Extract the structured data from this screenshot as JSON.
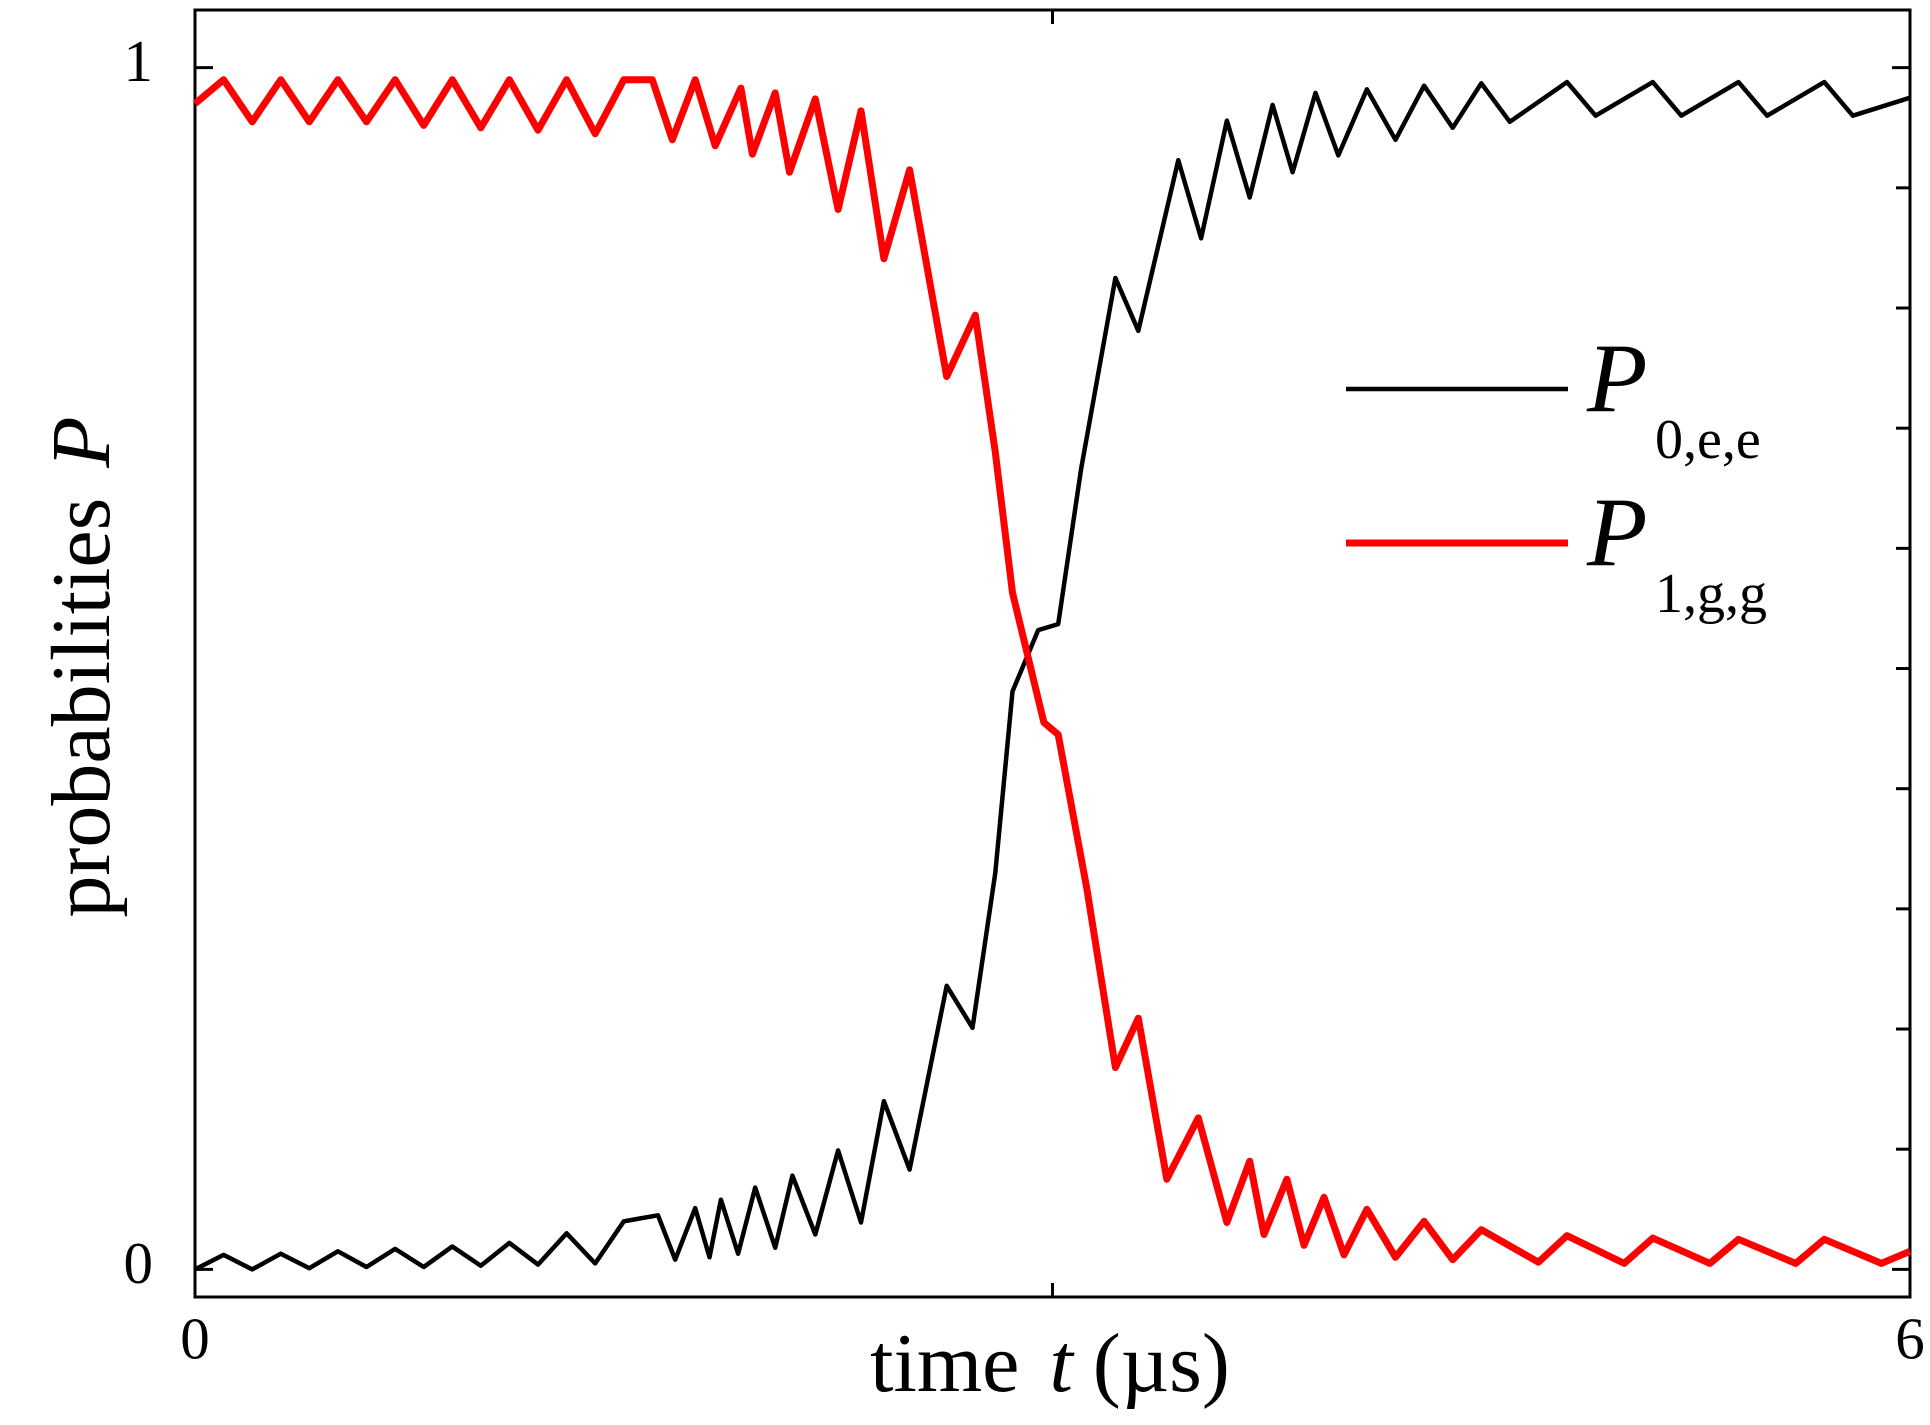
{
  "chart_data": {
    "type": "line",
    "xlabel": [
      "time",
      "t",
      "(µs)"
    ],
    "ylabel": [
      "probabilities",
      "P"
    ],
    "xlim": [
      0,
      6
    ],
    "xticks": [
      0,
      6
    ],
    "xminor_ticks": [
      3
    ],
    "ylim": [
      -0.023,
      1.048
    ],
    "yticks": [
      0,
      1
    ],
    "yminor_ticks": [
      0.1,
      0.2,
      0.3,
      0.4,
      0.5,
      0.6,
      0.7,
      0.8,
      0.9
    ],
    "legend": "right",
    "series": [
      {
        "name": "P",
        "subscript": "0,e,e",
        "color": "#000000",
        "x": [
          0,
          0.1,
          0.2,
          0.3,
          0.4,
          0.5,
          0.6,
          0.7,
          0.8,
          0.9,
          1.0,
          1.1,
          1.2,
          1.3,
          1.4,
          1.5,
          1.62,
          1.68,
          1.75,
          1.8,
          1.84,
          1.9,
          1.96,
          2.03,
          2.09,
          2.17,
          2.25,
          2.33,
          2.41,
          2.5,
          2.63,
          2.72,
          2.8,
          2.86,
          2.95,
          3.02,
          3.1,
          3.22,
          3.3,
          3.44,
          3.52,
          3.61,
          3.69,
          3.77,
          3.84,
          3.92,
          4.0,
          4.1,
          4.2,
          4.3,
          4.4,
          4.5,
          4.6,
          4.8,
          4.9,
          5.1,
          5.2,
          5.4,
          5.5,
          5.7,
          5.8,
          6.0
        ],
        "values": [
          0.0,
          0.012,
          0.0,
          0.013,
          0.001,
          0.015,
          0.002,
          0.017,
          0.002,
          0.019,
          0.003,
          0.022,
          0.004,
          0.03,
          0.005,
          0.04,
          0.045,
          0.008,
          0.051,
          0.01,
          0.058,
          0.013,
          0.068,
          0.018,
          0.078,
          0.029,
          0.099,
          0.039,
          0.14,
          0.083,
          0.236,
          0.201,
          0.33,
          0.481,
          0.532,
          0.537,
          0.666,
          0.825,
          0.781,
          0.923,
          0.858,
          0.956,
          0.892,
          0.969,
          0.913,
          0.979,
          0.927,
          0.982,
          0.94,
          0.985,
          0.95,
          0.987,
          0.955,
          0.988,
          0.96,
          0.988,
          0.96,
          0.988,
          0.96,
          0.988,
          0.96,
          0.975
        ]
      },
      {
        "name": "P",
        "subscript": "1,g,g",
        "color": "#ff0000",
        "x": [
          0,
          0.1,
          0.2,
          0.3,
          0.4,
          0.5,
          0.6,
          0.7,
          0.8,
          0.9,
          1.0,
          1.1,
          1.2,
          1.3,
          1.4,
          1.5,
          1.6,
          1.67,
          1.75,
          1.82,
          1.91,
          1.95,
          2.03,
          2.08,
          2.17,
          2.25,
          2.33,
          2.41,
          2.5,
          2.63,
          2.73,
          2.8,
          2.86,
          2.97,
          3.02,
          3.12,
          3.22,
          3.3,
          3.4,
          3.51,
          3.61,
          3.69,
          3.74,
          3.82,
          3.88,
          3.95,
          4.02,
          4.1,
          4.2,
          4.3,
          4.4,
          4.5,
          4.7,
          4.8,
          5.0,
          5.1,
          5.3,
          5.4,
          5.6,
          5.7,
          5.9,
          6.0
        ],
        "values": [
          0.97,
          0.99,
          0.955,
          0.99,
          0.955,
          0.99,
          0.955,
          0.99,
          0.952,
          0.99,
          0.95,
          0.99,
          0.948,
          0.99,
          0.945,
          0.99,
          0.99,
          0.94,
          0.99,
          0.935,
          0.983,
          0.928,
          0.979,
          0.913,
          0.974,
          0.882,
          0.964,
          0.841,
          0.915,
          0.743,
          0.794,
          0.68,
          0.563,
          0.455,
          0.445,
          0.317,
          0.168,
          0.209,
          0.075,
          0.126,
          0.039,
          0.09,
          0.029,
          0.075,
          0.02,
          0.06,
          0.012,
          0.05,
          0.01,
          0.04,
          0.008,
          0.033,
          0.006,
          0.028,
          0.005,
          0.026,
          0.005,
          0.025,
          0.005,
          0.025,
          0.005,
          0.015
        ]
      }
    ]
  }
}
